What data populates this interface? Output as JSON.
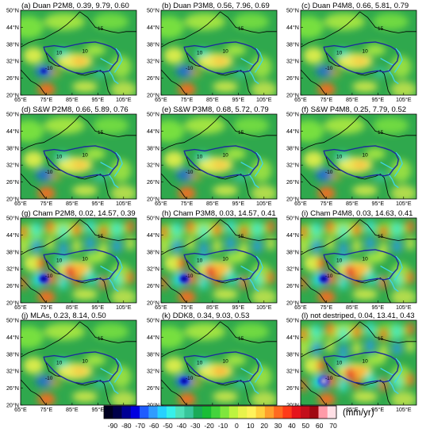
{
  "figure": {
    "panels": [
      {
        "title": "(a) Duan P2M8, 0.39, 9.79, 0.60",
        "style": "smooth",
        "blob_strength": 0.55
      },
      {
        "title": "(b) Duan P3M8, 0.56, 7.96, 0.69",
        "style": "smooth",
        "blob_strength": 0.35
      },
      {
        "title": "(c) Duan P4M8, 0.66, 5.81, 0.79",
        "style": "smooth",
        "blob_strength": 0.25
      },
      {
        "title": "(d) S&W  P2M8, 0.66, 5.89, 0.76",
        "style": "smooth",
        "blob_strength": 0.35
      },
      {
        "title": "(e) S&W  P3M8, 0.68, 5.72, 0.79",
        "style": "smooth",
        "blob_strength": 0.3
      },
      {
        "title": "(f) S&W  P4M8, 0.25, 7.79, 0.52",
        "style": "smooth",
        "blob_strength": 0.45
      },
      {
        "title": "(g) Cham P2M8, 0.02, 14.57, 0.39",
        "style": "stripes",
        "blob_strength": 0.9
      },
      {
        "title": "(h) Cham P3M8, 0.03, 14.57, 0.41",
        "style": "stripes",
        "blob_strength": 0.9
      },
      {
        "title": "(i) Cham P4M8, 0.03, 14.63, 0.41",
        "style": "stripes",
        "blob_strength": 0.9
      },
      {
        "title": "(j) MLAs, 0.23, 8.14, 0.50",
        "style": "smooth",
        "blob_strength": 0.3
      },
      {
        "title": "(k) DDK8, 0.34, 9.03, 0.53",
        "style": "smooth",
        "blob_strength": 0.8
      },
      {
        "title": "(l) not destriped, 0.04, 13.41, 0.43",
        "style": "stripes",
        "blob_strength": 1.0
      }
    ],
    "y_ticks": [
      "50°N",
      "44°N",
      "38°N",
      "32°N",
      "26°N",
      "20°N"
    ],
    "x_ticks": [
      "65°E",
      "75°E",
      "85°E",
      "95°E",
      "105°E"
    ],
    "contour_labels": [
      "10",
      "10",
      "-10",
      "15"
    ],
    "colorbar": {
      "ticks": [
        "-90",
        "-80",
        "-70",
        "-60",
        "-50",
        "-40",
        "-30",
        "-20",
        "-10",
        "0",
        "10",
        "20",
        "30",
        "40",
        "50",
        "60",
        "70"
      ],
      "unit": "(mm/yr)",
      "colors": [
        "#000020",
        "#00004a",
        "#000095",
        "#0000e0",
        "#1e5cff",
        "#2f9cff",
        "#27d1ff",
        "#36f0ea",
        "#50e0b8",
        "#38c59a",
        "#1aaa58",
        "#19bd37",
        "#43d33c",
        "#7fe63d",
        "#bdf33f",
        "#e8f24b",
        "#fff25a",
        "#ffd13e",
        "#ff9f2c",
        "#ff6a1f",
        "#ff3a18",
        "#e6141b",
        "#c40e1c",
        "#a00712",
        "#ff9aa8",
        "#ffdfe5"
      ]
    },
    "colors": {
      "background_green": "#2fa84d",
      "tibet_outline": "#1d2b9c",
      "river": "#3fd5e8",
      "border": "#000000"
    }
  }
}
